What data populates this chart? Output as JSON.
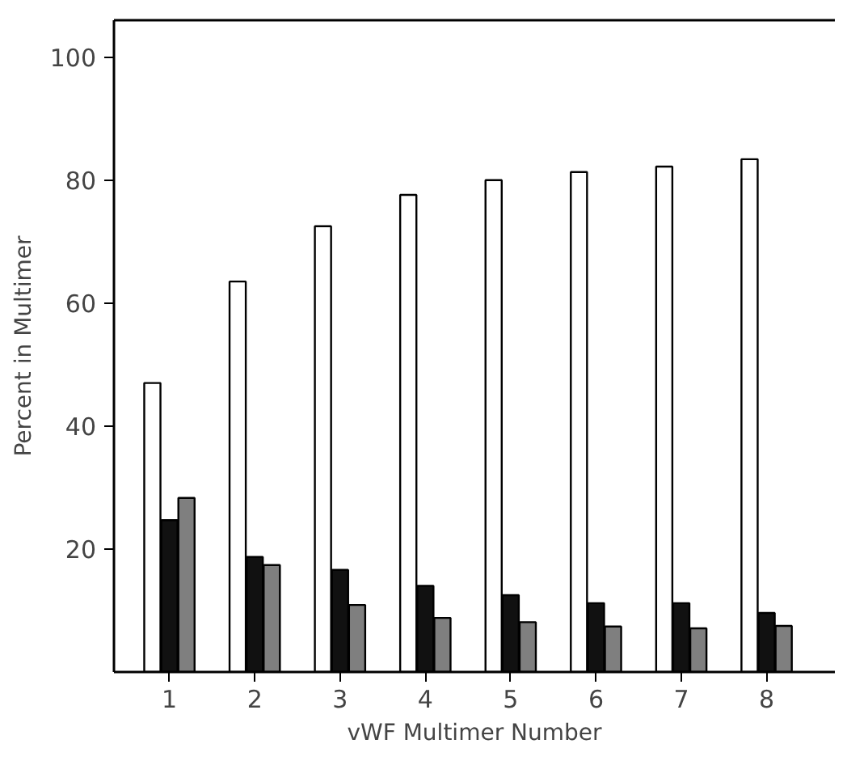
{
  "chart_data": {
    "type": "bar",
    "xlabel": "vWF Multimer Number",
    "ylabel": "Percent in Multimer",
    "categories": [
      "1",
      "2",
      "3",
      "4",
      "5",
      "6",
      "7",
      "8"
    ],
    "series": [
      {
        "color": "#ffffff",
        "values": [
          47,
          63.5,
          72.5,
          77.6,
          80,
          81.3,
          82.2,
          83.4
        ]
      },
      {
        "color": "#111111",
        "values": [
          24.7,
          18.7,
          16.6,
          14,
          12.5,
          11.2,
          11.2,
          9.6
        ]
      },
      {
        "color": "#7f7f7f",
        "values": [
          28.3,
          17.4,
          10.9,
          8.8,
          8.1,
          7.4,
          7.1,
          7.5
        ]
      }
    ],
    "ylim": [
      0,
      106
    ],
    "yticks": [
      20,
      40,
      60,
      80,
      100
    ],
    "grid": false
  }
}
